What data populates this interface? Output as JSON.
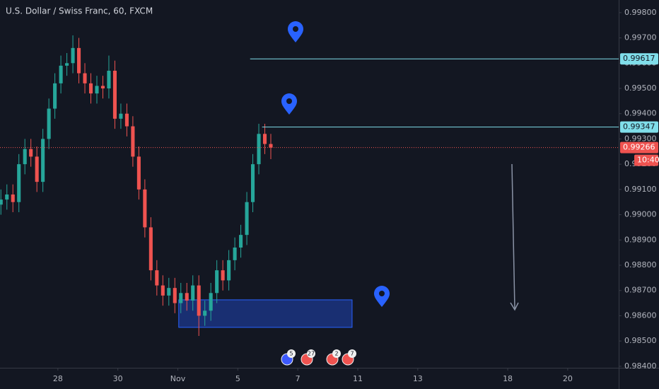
{
  "chart_data": {
    "type": "candlestick",
    "title": "U.S. Dollar / Swiss Franc, 60, FXCM",
    "x": [
      -1.9,
      -1.7,
      -1.5,
      -1.3,
      -1.1,
      -0.9,
      -0.7,
      -0.5,
      -0.3,
      -0.1,
      0.1,
      0.3,
      0.5,
      0.7,
      0.9,
      1.1,
      1.3,
      1.5,
      1.7,
      1.9,
      2.1,
      2.3,
      2.5,
      2.7,
      2.9,
      3.1,
      3.3,
      3.5,
      3.7,
      3.9,
      4.1,
      4.3,
      4.5,
      4.7,
      4.9,
      5.1,
      5.3,
      5.5,
      5.7,
      5.9,
      6.1,
      6.3,
      6.5,
      6.7,
      6.9,
      7.1
    ],
    "open": [
      0.9904,
      0.9906,
      0.9908,
      0.9905,
      0.992,
      0.9926,
      0.9923,
      0.9913,
      0.993,
      0.9942,
      0.9952,
      0.9959,
      0.996,
      0.9966,
      0.9956,
      0.9952,
      0.9948,
      0.9951,
      0.995,
      0.9957,
      0.9938,
      0.994,
      0.9935,
      0.9923,
      0.991,
      0.9895,
      0.9878,
      0.9872,
      0.9868,
      0.9871,
      0.9865,
      0.9869,
      0.9866,
      0.9872,
      0.986,
      0.9862,
      0.9869,
      0.9878,
      0.9874,
      0.9882,
      0.9887,
      0.9892,
      0.9905,
      0.992,
      0.9932,
      0.9928
    ],
    "high": [
      0.991,
      0.9912,
      0.9912,
      0.9924,
      0.993,
      0.993,
      0.9927,
      0.9934,
      0.9946,
      0.9956,
      0.9963,
      0.9964,
      0.9971,
      0.997,
      0.996,
      0.9956,
      0.9955,
      0.9955,
      0.9963,
      0.9961,
      0.9944,
      0.9944,
      0.9939,
      0.9927,
      0.9914,
      0.9899,
      0.9882,
      0.9876,
      0.9875,
      0.9875,
      0.9873,
      0.9873,
      0.9876,
      0.9876,
      0.9866,
      0.9873,
      0.9882,
      0.9882,
      0.9886,
      0.9891,
      0.9896,
      0.9909,
      0.9924,
      0.9936,
      0.9936,
      0.9932
    ],
    "low": [
      0.99,
      0.9902,
      0.9901,
      0.9901,
      0.9916,
      0.9919,
      0.9909,
      0.9909,
      0.9926,
      0.9938,
      0.9948,
      0.9955,
      0.9956,
      0.9952,
      0.9948,
      0.9944,
      0.9944,
      0.9946,
      0.9946,
      0.9934,
      0.9934,
      0.9931,
      0.9919,
      0.9906,
      0.9891,
      0.9874,
      0.9868,
      0.9864,
      0.9864,
      0.9861,
      0.9861,
      0.9862,
      0.9862,
      0.9852,
      0.9856,
      0.9858,
      0.9865,
      0.987,
      0.987,
      0.9878,
      0.9883,
      0.9888,
      0.9901,
      0.9916,
      0.9924,
      0.9922
    ],
    "close": [
      0.9906,
      0.9908,
      0.9905,
      0.992,
      0.9926,
      0.9923,
      0.9913,
      0.993,
      0.9942,
      0.9952,
      0.9959,
      0.996,
      0.9966,
      0.9956,
      0.9952,
      0.9948,
      0.9951,
      0.995,
      0.9957,
      0.9938,
      0.994,
      0.9935,
      0.9923,
      0.991,
      0.9895,
      0.9878,
      0.9872,
      0.9868,
      0.9871,
      0.9865,
      0.9869,
      0.9866,
      0.9872,
      0.986,
      0.9862,
      0.9869,
      0.9878,
      0.9874,
      0.9882,
      0.9887,
      0.9892,
      0.9905,
      0.992,
      0.9932,
      0.9928,
      0.99266
    ],
    "up_color": "#26a69a",
    "down_color": "#ef5350",
    "xlim": [
      -1.93,
      18.7
    ],
    "xticks": [
      {
        "value": 0,
        "label": "28"
      },
      {
        "value": 2,
        "label": "30"
      },
      {
        "value": 4,
        "label": "Nov"
      },
      {
        "value": 6,
        "label": "5"
      },
      {
        "value": 8,
        "label": "7"
      },
      {
        "value": 10,
        "label": "11"
      },
      {
        "value": 12,
        "label": "13"
      },
      {
        "value": 15,
        "label": "18"
      },
      {
        "value": 17,
        "label": "20"
      }
    ],
    "ylim": [
      0.98394,
      0.9985
    ],
    "yticks": [
      {
        "value": 0.998,
        "label": "0.99800"
      },
      {
        "value": 0.997,
        "label": "0.99700"
      },
      {
        "value": 0.996,
        "label": "0.99600"
      },
      {
        "value": 0.995,
        "label": "0.99500"
      },
      {
        "value": 0.994,
        "label": "0.99400"
      },
      {
        "value": 0.993,
        "label": "0.99300"
      },
      {
        "value": 0.992,
        "label": "0.99200"
      },
      {
        "value": 0.991,
        "label": "0.99100"
      },
      {
        "value": 0.99,
        "label": "0.99000"
      },
      {
        "value": 0.989,
        "label": "0.98900"
      },
      {
        "value": 0.988,
        "label": "0.98800"
      },
      {
        "value": 0.987,
        "label": "0.98700"
      },
      {
        "value": 0.986,
        "label": "0.98600"
      },
      {
        "value": 0.985,
        "label": "0.98500"
      },
      {
        "value": 0.984,
        "label": "0.98400"
      }
    ],
    "levels": [
      {
        "value": 0.99617,
        "start": 6.41,
        "color": "#80deea"
      },
      {
        "value": 0.99347,
        "start": 6.81,
        "color": "#80deea"
      }
    ],
    "last_price": 0.99266,
    "last_color": "#ef5350",
    "countdown": "10:40",
    "zone": {
      "x": [
        4.03,
        9.81
      ],
      "y": [
        0.98554,
        0.98663
      ],
      "color": "#1e3fa8"
    },
    "events": [
      "5",
      "27",
      "2",
      "7"
    ]
  }
}
